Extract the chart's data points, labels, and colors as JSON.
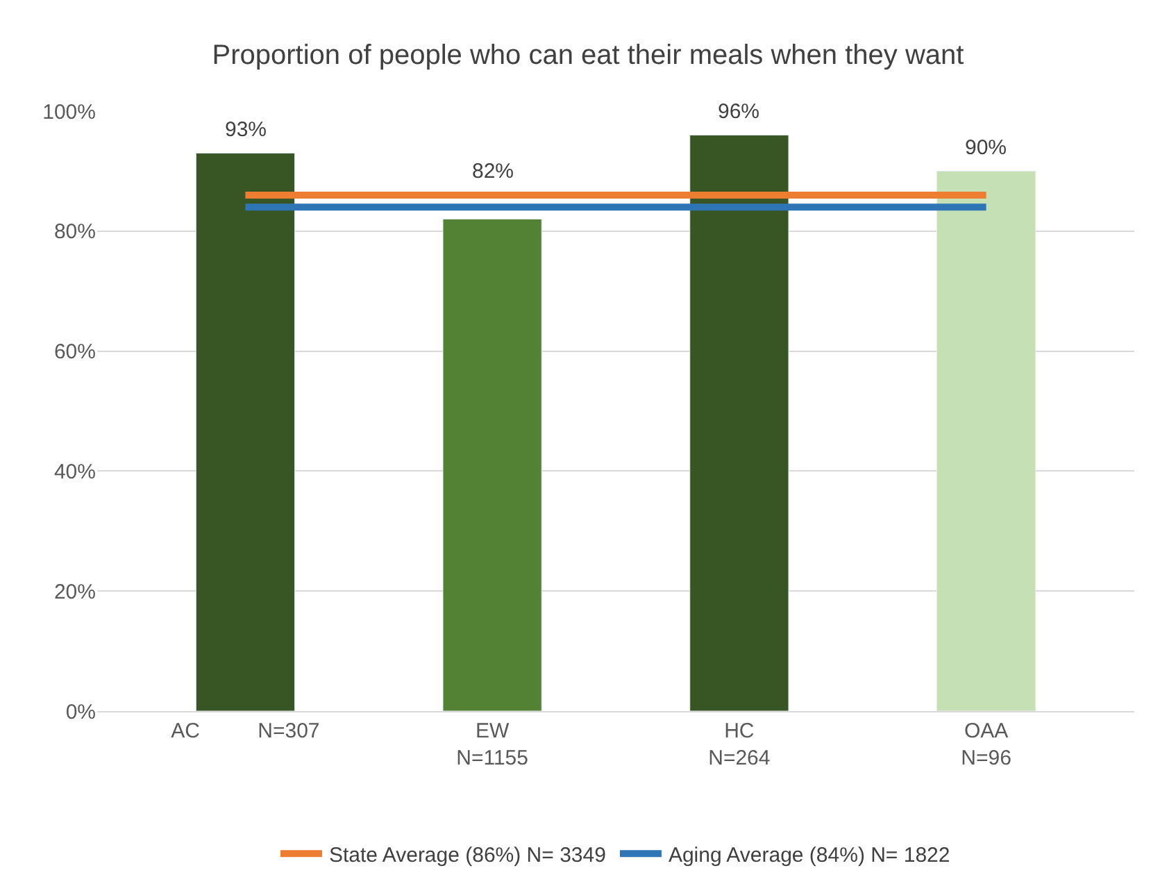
{
  "chart_data": {
    "type": "bar",
    "title": "Proportion of people who can eat their meals when they want",
    "categories": [
      "AC          N=307",
      "EW\nN=1155",
      "HC\nN=264",
      "OAA\nN=96"
    ],
    "series": [
      {
        "colors": [
          "#375623",
          "#548235",
          "#375623",
          "#c5e0b4"
        ],
        "values": [
          93,
          82,
          96,
          90
        ],
        "value_labels": [
          "93%",
          "82%",
          "96%",
          "90%"
        ]
      },
      {
        "type": "line",
        "name": "State Average (86%) N= 3349",
        "color": "#ed7d31",
        "values": [
          86,
          86,
          86,
          86
        ]
      },
      {
        "type": "line",
        "name": "Aging Average (84%) N= 1822",
        "color": "#2e75b6",
        "values": [
          84,
          84,
          84,
          84
        ]
      }
    ],
    "ylim": [
      0,
      100
    ],
    "yticks": [
      {
        "value": 0,
        "label": "0%"
      },
      {
        "value": 20,
        "label": "20%"
      },
      {
        "value": 40,
        "label": "40%"
      },
      {
        "value": 60,
        "label": "60%"
      },
      {
        "value": 80,
        "label": "80%"
      },
      {
        "value": 100,
        "label": "100%"
      }
    ],
    "grid": "y",
    "legend": "bottom",
    "marker": "none",
    "line_style": "solid"
  }
}
